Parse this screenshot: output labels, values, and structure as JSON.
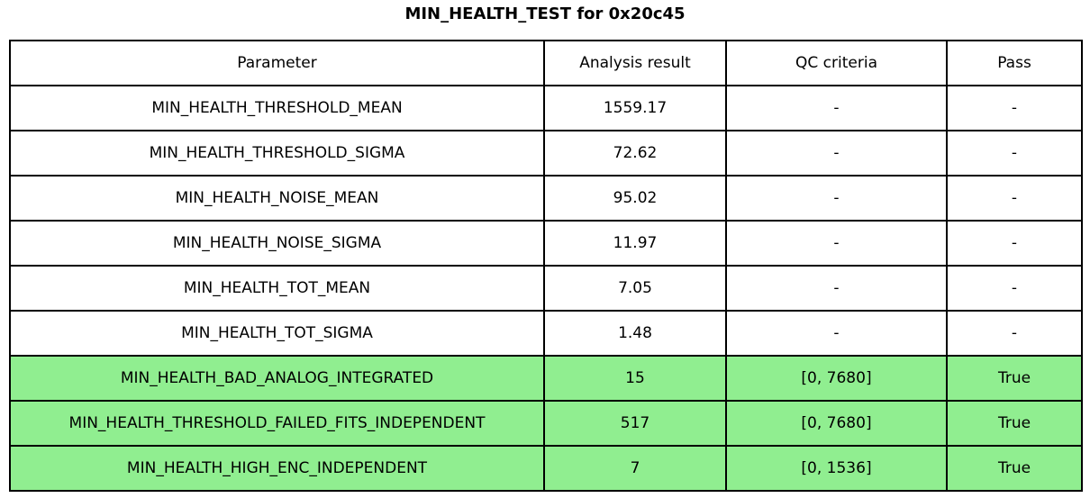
{
  "chart_data": {
    "type": "table",
    "title": "MIN_HEALTH_TEST for 0x20c45",
    "columns": [
      "Parameter",
      "Analysis result",
      "QC criteria",
      "Pass"
    ],
    "rows": [
      [
        "MIN_HEALTH_THRESHOLD_MEAN",
        "1559.17",
        "-",
        "-"
      ],
      [
        "MIN_HEALTH_THRESHOLD_SIGMA",
        "72.62",
        "-",
        "-"
      ],
      [
        "MIN_HEALTH_NOISE_MEAN",
        "95.02",
        "-",
        "-"
      ],
      [
        "MIN_HEALTH_NOISE_SIGMA",
        "11.97",
        "-",
        "-"
      ],
      [
        "MIN_HEALTH_TOT_MEAN",
        "7.05",
        "-",
        "-"
      ],
      [
        "MIN_HEALTH_TOT_SIGMA",
        "1.48",
        "-",
        "-"
      ],
      [
        "MIN_HEALTH_BAD_ANALOG_INTEGRATED",
        "15",
        "[0, 7680]",
        "True"
      ],
      [
        "MIN_HEALTH_THRESHOLD_FAILED_FITS_INDEPENDENT",
        "517",
        "[0, 7680]",
        "True"
      ],
      [
        "MIN_HEALTH_HIGH_ENC_INDEPENDENT",
        "7",
        "[0, 1536]",
        "True"
      ]
    ],
    "highlighted_rows": [
      6,
      7,
      8
    ],
    "legend_position": "none",
    "grid": "full-cell-borders"
  },
  "colors": {
    "pass_green": "#90ee90",
    "border": "#000000",
    "background": "#ffffff",
    "text": "#000000"
  }
}
